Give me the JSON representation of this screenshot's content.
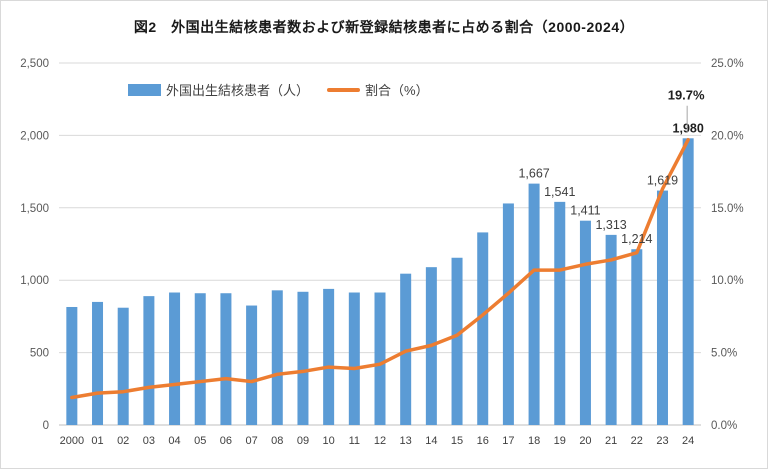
{
  "title": "図2　外国出生結核患者数および新登録結核患者に占める割合（2000-2024）",
  "legend": {
    "bars_label": "外国出生結核患者（人）",
    "line_label": "割合（%）"
  },
  "colors": {
    "bar": "#5B9BD5",
    "line": "#ED7D31",
    "gridline": "#D9D9D9",
    "axis_line": "#BFBFBF",
    "axis_text": "#595959",
    "label_text": "#404040",
    "bold_label_text": "#1f1f1f",
    "leader_line": "#A6A6A6"
  },
  "chart_data": {
    "type": "bar",
    "subtype": "bar+line combo",
    "title": "図2　外国出生結核患者数および新登録結核患者に占める割合（2000-2024）",
    "categories": [
      "2000",
      "01",
      "02",
      "03",
      "04",
      "05",
      "06",
      "07",
      "08",
      "09",
      "10",
      "11",
      "12",
      "13",
      "14",
      "15",
      "16",
      "17",
      "18",
      "19",
      "20",
      "21",
      "22",
      "23",
      "24"
    ],
    "series": [
      {
        "name": "外国出生結核患者（人）",
        "type": "bar",
        "axis": "left",
        "values": [
          815,
          850,
          810,
          890,
          915,
          910,
          910,
          825,
          930,
          920,
          940,
          915,
          915,
          1045,
          1090,
          1155,
          1330,
          1530,
          1667,
          1541,
          1411,
          1313,
          1214,
          1619,
          1980
        ]
      },
      {
        "name": "割合（%）",
        "type": "line",
        "axis": "right",
        "values": [
          1.9,
          2.2,
          2.3,
          2.6,
          2.8,
          3.0,
          3.2,
          3.0,
          3.5,
          3.7,
          4.0,
          3.9,
          4.2,
          5.1,
          5.5,
          6.2,
          7.6,
          9.1,
          10.7,
          10.7,
          11.1,
          11.4,
          11.9,
          16.3,
          19.7
        ]
      }
    ],
    "bar_data_labels": {
      "18": "1,667",
      "19": "1,541",
      "20": "1,411",
      "21": "1,313",
      "22": "1,214",
      "23": "1,619",
      "24": "1,980"
    },
    "line_data_labels": {
      "24": "19.7%"
    },
    "emphasized_categories": [
      "24"
    ],
    "left_axis": {
      "min": 0,
      "max": 2500,
      "ticks": [
        "0",
        "500",
        "1,000",
        "1,500",
        "2,000",
        "2,500"
      ]
    },
    "right_axis": {
      "min": 0,
      "max": 25,
      "ticks": [
        "0.0%",
        "5.0%",
        "10.0%",
        "15.0%",
        "20.0%",
        "25.0%"
      ]
    },
    "grid": true,
    "legend_position": "top"
  }
}
